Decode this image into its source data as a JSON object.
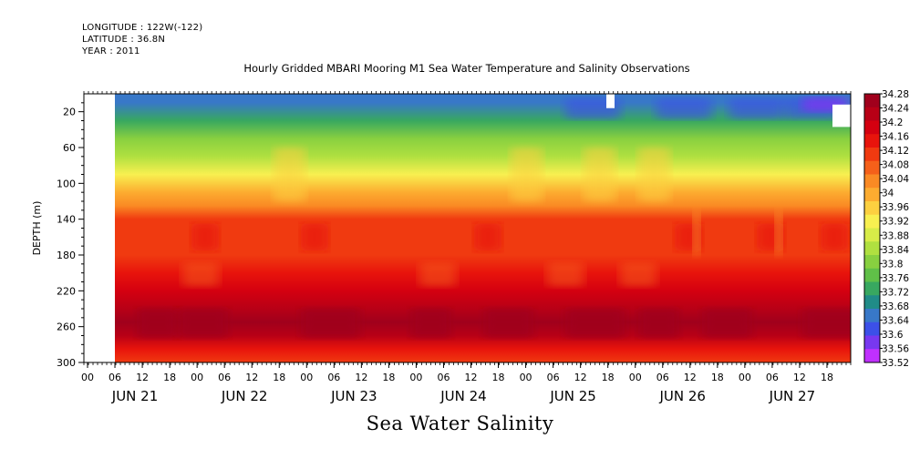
{
  "header": {
    "longitude": "LONGITUDE : 122W(-122)",
    "latitude": "LATITUDE : 36.8N",
    "year": "YEAR : 2011"
  },
  "chart_data": {
    "type": "heatmap",
    "title": "Hourly Gridded MBARI Mooring M1 Sea Water Temperature and Salinity Observations",
    "bottom_title": "Sea Water Salinity",
    "ylabel": "DEPTH (m)",
    "ylim": [
      300,
      0
    ],
    "y_ticks": [
      20,
      60,
      100,
      140,
      180,
      220,
      260,
      300
    ],
    "x_hour_ticks": [
      "00",
      "06",
      "12",
      "18",
      "00",
      "06",
      "12",
      "18",
      "00",
      "06",
      "12",
      "18",
      "00",
      "06",
      "12",
      "18",
      "00",
      "06",
      "12",
      "18",
      "00",
      "06",
      "12",
      "18",
      "00",
      "06",
      "12",
      "18"
    ],
    "x_dates": [
      "JUN 21",
      "JUN 22",
      "JUN 23",
      "JUN 24",
      "JUN 25",
      "JUN 26",
      "JUN 27"
    ],
    "colorbar_ticks": [
      "34.28",
      "34.24",
      "34.2",
      "34.16",
      "34.12",
      "34.08",
      "34.04",
      "34",
      "33.96",
      "33.92",
      "33.88",
      "33.84",
      "33.8",
      "33.76",
      "33.72",
      "33.68",
      "33.64",
      "33.6",
      "33.56",
      "33.52"
    ],
    "colorbar_colors": [
      "#a0001c",
      "#b80016",
      "#d40010",
      "#e8140c",
      "#f03a10",
      "#f5601a",
      "#fa8a24",
      "#fcac30",
      "#fcd040",
      "#f8f050",
      "#d8ec48",
      "#b0e040",
      "#88d040",
      "#60c048",
      "#38a860",
      "#208c88",
      "#3878c8",
      "#3c50e8",
      "#7838f0",
      "#c030ff"
    ],
    "salinity_profile": [
      {
        "depth": 10,
        "value": 33.66
      },
      {
        "depth": 30,
        "value": 33.74
      },
      {
        "depth": 50,
        "value": 33.8
      },
      {
        "depth": 70,
        "value": 33.86
      },
      {
        "depth": 90,
        "value": 33.92
      },
      {
        "depth": 110,
        "value": 33.98
      },
      {
        "depth": 125,
        "value": 34.03
      },
      {
        "depth": 140,
        "value": 34.09
      },
      {
        "depth": 160,
        "value": 34.12
      },
      {
        "depth": 180,
        "value": 34.11
      },
      {
        "depth": 200,
        "value": 34.13
      },
      {
        "depth": 220,
        "value": 34.17
      },
      {
        "depth": 240,
        "value": 34.21
      },
      {
        "depth": 255,
        "value": 34.25
      },
      {
        "depth": 270,
        "value": 34.21
      },
      {
        "depth": 285,
        "value": 34.15
      },
      {
        "depth": 300,
        "value": 34.1
      }
    ],
    "grid": false,
    "legend": "right"
  }
}
